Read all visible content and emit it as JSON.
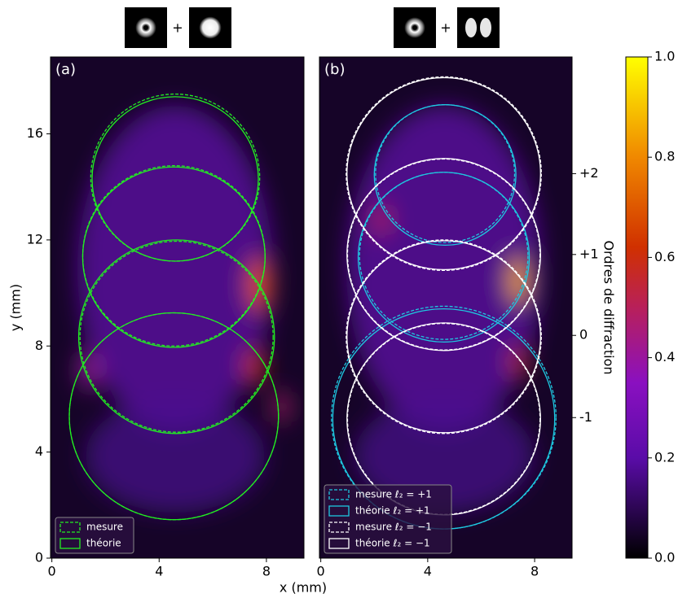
{
  "chart_data": [
    {
      "type": "circles",
      "label": "(a)",
      "operator": "+",
      "xlabel": "x (mm)",
      "ylabel": "y (mm)",
      "xlim": [
        -0.05,
        9.4
      ],
      "ylim": [
        0,
        18.9
      ],
      "xticks": [
        0,
        4,
        8
      ],
      "yticks": [
        0,
        4,
        8,
        12,
        16
      ],
      "legend": "lower left",
      "series": [
        {
          "name": "mesure",
          "color": "#22ee22",
          "dashed": true,
          "x": [
            4.6,
            4.55,
            4.65,
            4.55
          ],
          "y": [
            14.35,
            11.4,
            8.35,
            5.35
          ],
          "r": [
            3.15,
            3.4,
            3.6,
            3.9
          ]
        },
        {
          "name": "théorie",
          "color": "#22ee22",
          "dashed": false,
          "x": [
            4.6,
            4.55,
            4.65,
            4.55
          ],
          "y": [
            14.3,
            11.35,
            8.35,
            5.35
          ],
          "r": [
            3.1,
            3.4,
            3.65,
            3.9
          ]
        }
      ]
    },
    {
      "type": "circles",
      "label": "(b)",
      "operator": "+",
      "y2label": "Ordres de diffraction",
      "xlim": [
        -0.05,
        9.4
      ],
      "ylim": [
        0,
        18.9
      ],
      "xticks": [
        0,
        4,
        8
      ],
      "y2lim": [
        0,
        18.9
      ],
      "y2ticks": [
        {
          "value": 14.5,
          "label": "+2"
        },
        {
          "value": 11.45,
          "label": "+1"
        },
        {
          "value": 8.4,
          "label": "0"
        },
        {
          "value": 5.3,
          "label": "-1"
        }
      ],
      "legend": "lower left",
      "series": [
        {
          "name": "mesure ℓ₂ = +1",
          "color": "#1ec8e0",
          "dashed": true,
          "x": [
            4.65,
            4.6,
            4.6
          ],
          "y": [
            14.5,
            11.4,
            5.3
          ],
          "r": [
            2.6,
            3.15,
            4.2
          ]
        },
        {
          "name": "théorie ℓ₂ = +1",
          "color": "#1ec8e0",
          "dashed": false,
          "x": [
            4.65,
            4.6,
            4.6
          ],
          "y": [
            14.45,
            11.35,
            5.25
          ],
          "r": [
            2.65,
            3.2,
            4.15
          ]
        },
        {
          "name": "mesure ℓ₂ = −1",
          "color": "#ffffff",
          "dashed": true,
          "x": [
            4.6,
            4.6,
            4.6,
            4.6
          ],
          "y": [
            14.5,
            11.45,
            8.35,
            5.25
          ],
          "r": [
            3.65,
            3.6,
            3.65,
            3.6
          ]
        },
        {
          "name": "théorie ℓ₂ = −1",
          "color": "#ffffff",
          "dashed": false,
          "x": [
            4.6,
            4.6,
            4.6,
            4.6
          ],
          "y": [
            14.5,
            11.45,
            8.35,
            5.25
          ],
          "r": [
            3.62,
            3.62,
            3.62,
            3.62
          ]
        }
      ]
    },
    {
      "type": "colorbar",
      "lim": [
        0,
        1
      ],
      "ticks": [
        {
          "value": 0,
          "label": "0.0"
        },
        {
          "value": 0.2,
          "label": "0.2"
        },
        {
          "value": 0.4,
          "label": "0.4"
        },
        {
          "value": 0.6,
          "label": "0.6"
        },
        {
          "value": 0.8,
          "label": "0.8"
        },
        {
          "value": 1,
          "label": "1.0"
        }
      ]
    }
  ]
}
